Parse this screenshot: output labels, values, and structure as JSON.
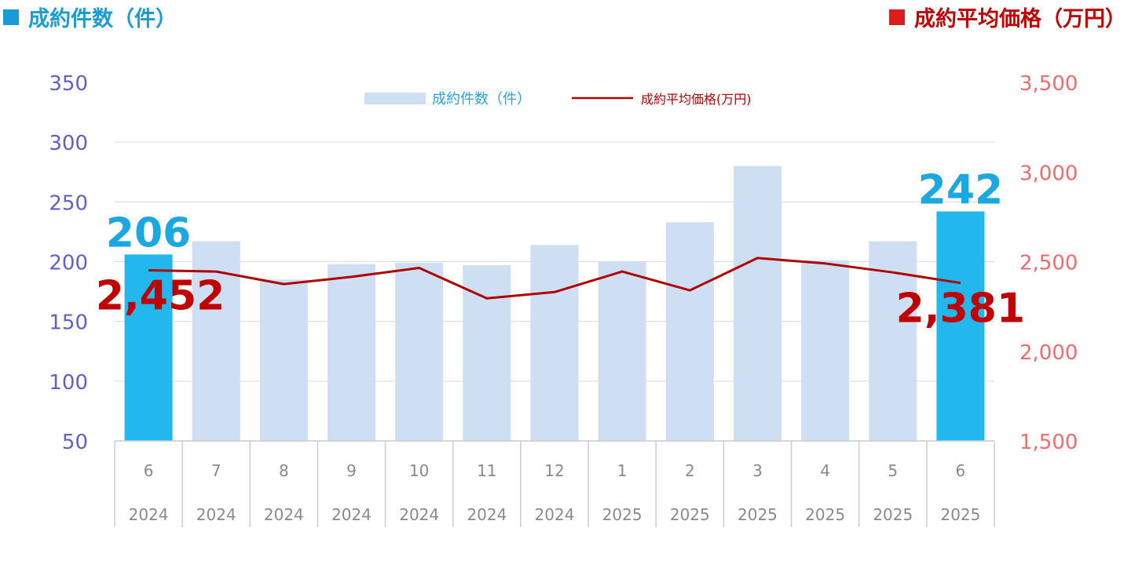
{
  "header": {
    "left_label": "成約件数（件）",
    "right_label": "成約平均価格（万円）"
  },
  "colors": {
    "bar_default": "#cfdff3",
    "bar_highlight": "#22b8ee",
    "line": "#b00000",
    "left_axis": "#6060c8",
    "right_axis": "#f26a6a",
    "count_annotation": "#1aa7e2",
    "price_annotation": "#c00000"
  },
  "chart_data": {
    "type": "bar",
    "categories": [
      "6",
      "7",
      "8",
      "9",
      "10",
      "11",
      "12",
      "1",
      "2",
      "3",
      "4",
      "5",
      "6"
    ],
    "years": [
      "2024",
      "2024",
      "2024",
      "2024",
      "2024",
      "2024",
      "2024",
      "2025",
      "2025",
      "2025",
      "2025",
      "2025",
      "2025"
    ],
    "series": [
      {
        "name": "成約件数（件）",
        "type": "bar",
        "axis": "left",
        "values": [
          206,
          217,
          185,
          198,
          199,
          197,
          214,
          200,
          233,
          280,
          201,
          217,
          242
        ],
        "highlight": [
          true,
          false,
          false,
          false,
          false,
          false,
          false,
          false,
          false,
          false,
          false,
          false,
          true
        ]
      },
      {
        "name": "成約平均価格(万円)",
        "type": "line",
        "axis": "right",
        "values": [
          2452,
          2445,
          2375,
          2415,
          2465,
          2295,
          2330,
          2445,
          2340,
          2520,
          2490,
          2440,
          2381
        ]
      }
    ],
    "y_left": {
      "min": 50,
      "max": 350,
      "ticks": [
        50,
        100,
        150,
        200,
        250,
        300,
        350
      ]
    },
    "y_right": {
      "min": 1500,
      "max": 3500,
      "ticks": [
        "1,500",
        "2,000",
        "2,500",
        "3,000",
        "3,500"
      ]
    },
    "annotations": [
      {
        "text": "206",
        "series": 0,
        "index": 0
      },
      {
        "text": "242",
        "series": 0,
        "index": 12
      },
      {
        "text": "2,452",
        "series": 1,
        "index": 0
      },
      {
        "text": "2,381",
        "series": 1,
        "index": 12
      }
    ],
    "grid": true,
    "legend_position": "top-center"
  }
}
